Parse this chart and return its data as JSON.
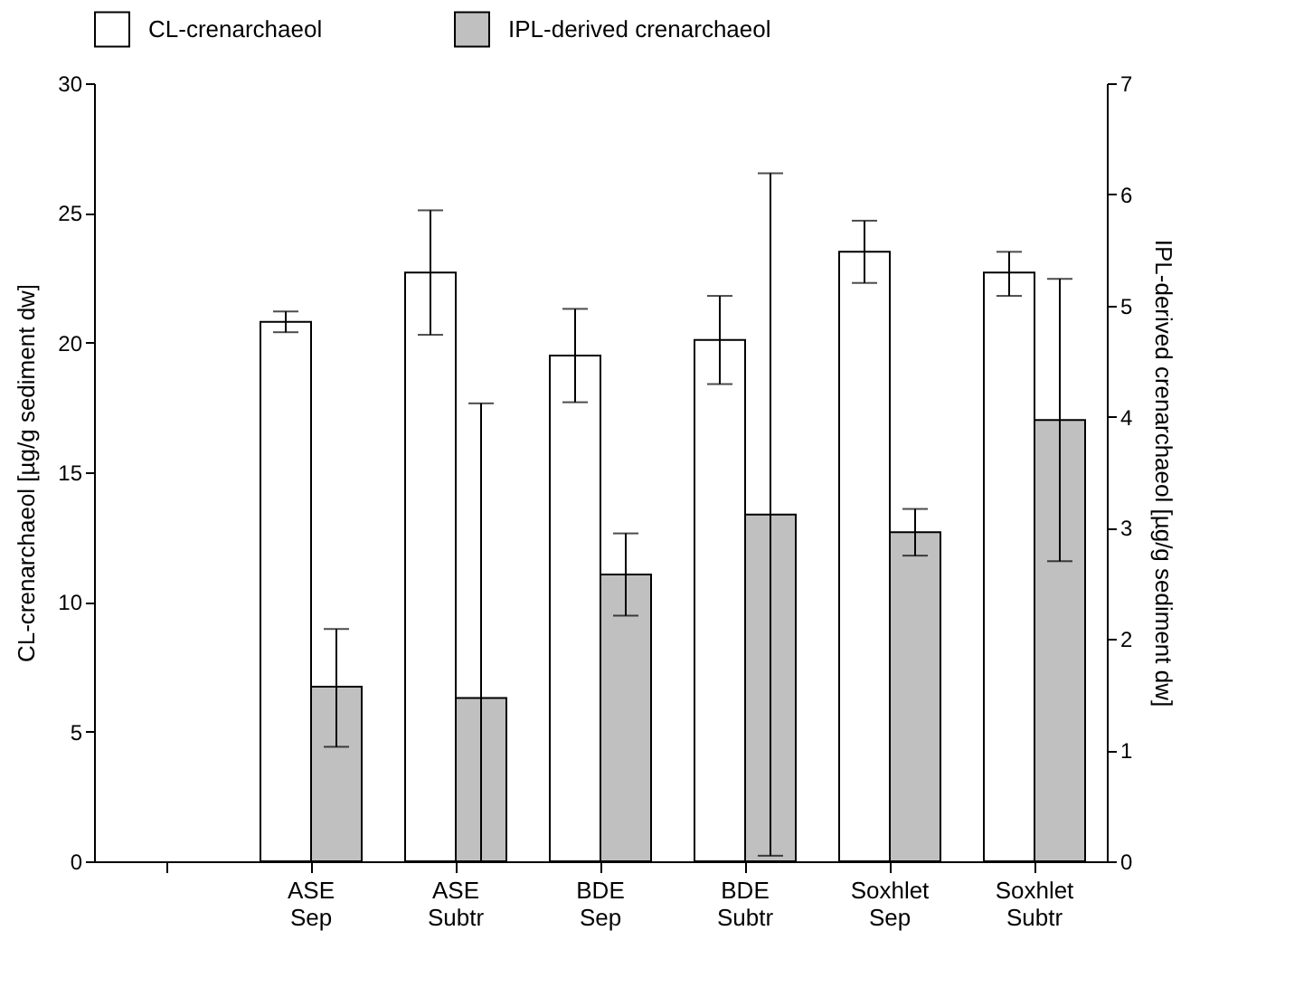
{
  "chart_data": {
    "type": "bar",
    "ylabel": "CL-crenarchaeol [µg/g sediment dw]",
    "y2label": "IPL-derived crenarchaeol [µg/g sediment dw]",
    "categories": [
      null,
      "ASE Sep",
      "ASE Subtr",
      "BDE Sep",
      "BDE Subtr",
      "Soxhlet Sep",
      "Soxhlet Subtr"
    ],
    "series": [
      {
        "name": "CL-crenarchaeol",
        "color": "#ffffff",
        "values": [
          null,
          20.8,
          22.7,
          19.5,
          20.1,
          23.5,
          22.7
        ],
        "errors": [
          null,
          [
            20.4,
            21.2
          ],
          [
            20.3,
            25.1
          ],
          [
            17.7,
            21.3
          ],
          [
            18.4,
            21.8
          ],
          [
            22.3,
            24.7
          ],
          [
            21.8,
            23.5
          ]
        ]
      },
      {
        "name": "IPL-derived crenarchaeol",
        "color": "#c0c0c0",
        "axis": "y2",
        "values": [
          null,
          1.57,
          1.47,
          2.58,
          3.12,
          2.96,
          3.97
        ],
        "errors": [
          null,
          [
            1.03,
            2.09
          ],
          [
            0,
            4.12
          ],
          [
            2.21,
            2.95
          ],
          [
            0.05,
            6.19
          ],
          [
            2.75,
            3.17
          ],
          [
            2.7,
            5.24
          ]
        ]
      }
    ],
    "ylim": [
      0,
      30
    ],
    "yticks": [
      0,
      5,
      10,
      15,
      20,
      25,
      30
    ],
    "y2lim": [
      0,
      7
    ],
    "y2ticks": [
      0,
      1,
      2,
      3,
      4,
      5,
      6,
      7
    ],
    "legend": "top",
    "grid": false
  }
}
